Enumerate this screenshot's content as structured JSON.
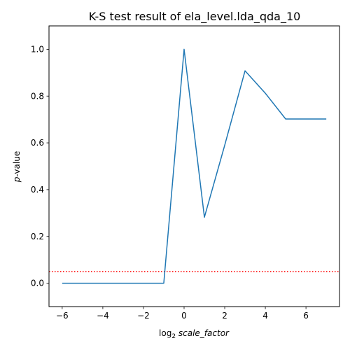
{
  "chart_data": {
    "type": "line",
    "title": "K-S test result of ela_level.lda_qda_10",
    "xlabel": {
      "prefix": "log",
      "subscript": "2",
      "var": "scale_factor"
    },
    "ylabel": {
      "var": "p",
      "suffix": "-value"
    },
    "xlim": [
      -6.65,
      7.65
    ],
    "ylim": [
      -0.1,
      1.1
    ],
    "xticks": [
      -6,
      -4,
      -2,
      0,
      2,
      4,
      6
    ],
    "xtick_labels": [
      "−6",
      "−4",
      "−2",
      "0",
      "2",
      "4",
      "6"
    ],
    "yticks": [
      0.0,
      0.2,
      0.4,
      0.6,
      0.8,
      1.0
    ],
    "ytick_labels": [
      "0.0",
      "0.2",
      "0.4",
      "0.6",
      "0.8",
      "1.0"
    ],
    "grid": false,
    "series": [
      {
        "color": "#1f77b4",
        "x": [
          -6,
          -5,
          -4,
          -3,
          -2,
          -1,
          0,
          1,
          2,
          3,
          4,
          5,
          6,
          7
        ],
        "y": [
          0.0,
          0.0,
          0.0,
          0.0,
          0.0,
          0.0,
          1.0,
          0.282,
          0.59,
          0.908,
          0.812,
          0.702,
          0.702,
          0.702
        ]
      }
    ],
    "reference_line": {
      "y": 0.05,
      "color": "#ff0000",
      "style": "dotted"
    }
  }
}
